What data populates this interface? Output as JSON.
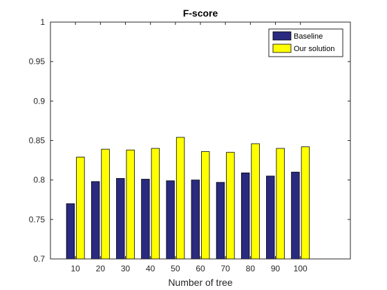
{
  "chart_data": {
    "type": "bar",
    "title": "F-score",
    "xlabel": "Number of tree",
    "ylabel": "",
    "categories": [
      "10",
      "20",
      "30",
      "40",
      "50",
      "60",
      "70",
      "80",
      "90",
      "100"
    ],
    "xlim": [
      0,
      12
    ],
    "ylim": [
      0.7,
      1.0
    ],
    "yticks": [
      "0.7",
      "0.75",
      "0.8",
      "0.85",
      "0.9",
      "0.95",
      "1"
    ],
    "grid": false,
    "legend_position": "top-right",
    "series": [
      {
        "name": "Baseline",
        "color": "#2a2a80",
        "values": [
          0.77,
          0.798,
          0.802,
          0.801,
          0.799,
          0.8,
          0.797,
          0.809,
          0.805,
          0.81
        ]
      },
      {
        "name": "Our solution",
        "color": "#ffff00",
        "values": [
          0.829,
          0.839,
          0.838,
          0.84,
          0.854,
          0.836,
          0.835,
          0.846,
          0.84,
          0.842
        ]
      }
    ]
  }
}
